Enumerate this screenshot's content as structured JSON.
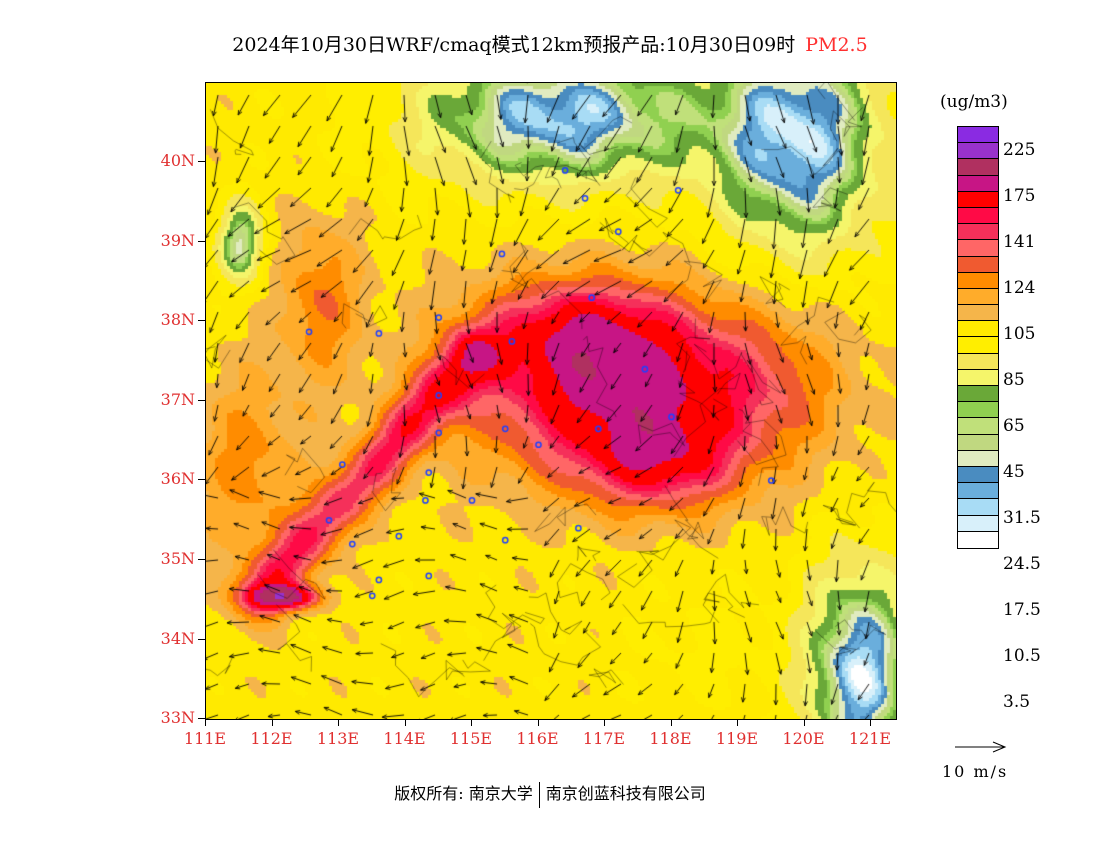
{
  "title": {
    "main": "2024年10月30日WRF/cmaq模式12km预报产品:10月30日09时",
    "species": "PM2.5",
    "species_color": "#ff3030"
  },
  "lat_labels": [
    "40N",
    "39N",
    "38N",
    "37N",
    "36N",
    "35N",
    "34N",
    "33N"
  ],
  "lon_labels": [
    "111E",
    "112E",
    "113E",
    "114E",
    "115E",
    "116E",
    "117E",
    "118E",
    "119E",
    "120E",
    "121E"
  ],
  "legend": {
    "unit": "(ug/m3)",
    "colors_top_to_bottom": [
      "#8a2be2",
      "#9932cc",
      "#b03060",
      "#c71585",
      "#ff0000",
      "#ff0a46",
      "#f5305a",
      "#ff6666",
      "#f05a30",
      "#ff8c00",
      "#ffac2a",
      "#f5b54a",
      "#ffea00",
      "#ffee00",
      "#f5e65a",
      "#f5f56a",
      "#6aa838",
      "#90d050",
      "#c0e07a",
      "#c0d880",
      "#e0ebc0",
      "#4a8cc0",
      "#6aaedc",
      "#a8dcf5",
      "#d8f0fa",
      "#ffffff"
    ],
    "labels": [
      "225",
      "175",
      "141",
      "124",
      "105",
      "85",
      "65",
      "45",
      "31.5",
      "24.5",
      "17.5",
      "10.5",
      "3.5"
    ]
  },
  "wind_reference": {
    "label": "10 m/s"
  },
  "credit": {
    "left": "版权所有: 南京大学",
    "right": "南京创蓝科技有限公司"
  }
}
